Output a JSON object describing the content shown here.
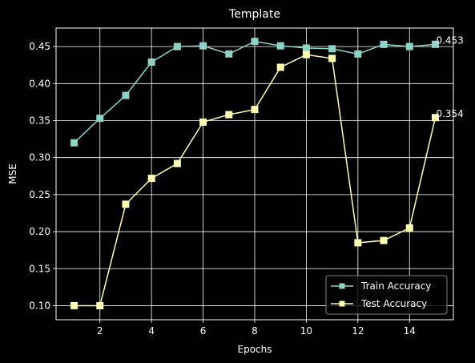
{
  "chart_data": {
    "type": "line",
    "title": "Template",
    "xlabel": "Epochs",
    "ylabel": "MSE",
    "x": [
      1,
      2,
      3,
      4,
      5,
      6,
      7,
      8,
      9,
      10,
      11,
      12,
      13,
      14,
      15
    ],
    "xlim": [
      0.3,
      15.7
    ],
    "ylim": [
      0.081,
      0.475
    ],
    "xticks": [
      2,
      4,
      6,
      8,
      10,
      12,
      14
    ],
    "xtick_labels": [
      "2",
      "4",
      "6",
      "8",
      "10",
      "12",
      "14"
    ],
    "yticks": [
      0.1,
      0.15,
      0.2,
      0.25,
      0.3,
      0.35,
      0.4,
      0.45
    ],
    "ytick_labels": [
      "0.10",
      "0.15",
      "0.20",
      "0.25",
      "0.30",
      "0.35",
      "0.40",
      "0.45"
    ],
    "grid": true,
    "legend_position": "lower-right",
    "series": [
      {
        "name": "Train Accuracy",
        "color": "#8dd3c7",
        "marker": "square",
        "values": [
          0.32,
          0.353,
          0.384,
          0.429,
          0.45,
          0.451,
          0.44,
          0.457,
          0.451,
          0.448,
          0.447,
          0.44,
          0.453,
          0.45,
          0.453
        ],
        "end_label": "0.453"
      },
      {
        "name": "Test Accuracy",
        "color": "#feffb3",
        "marker": "square",
        "values": [
          0.1,
          0.1,
          0.237,
          0.272,
          0.292,
          0.348,
          0.358,
          0.365,
          0.422,
          0.439,
          0.434,
          0.185,
          0.188,
          0.205,
          0.354
        ],
        "end_label": "0.354"
      }
    ]
  }
}
